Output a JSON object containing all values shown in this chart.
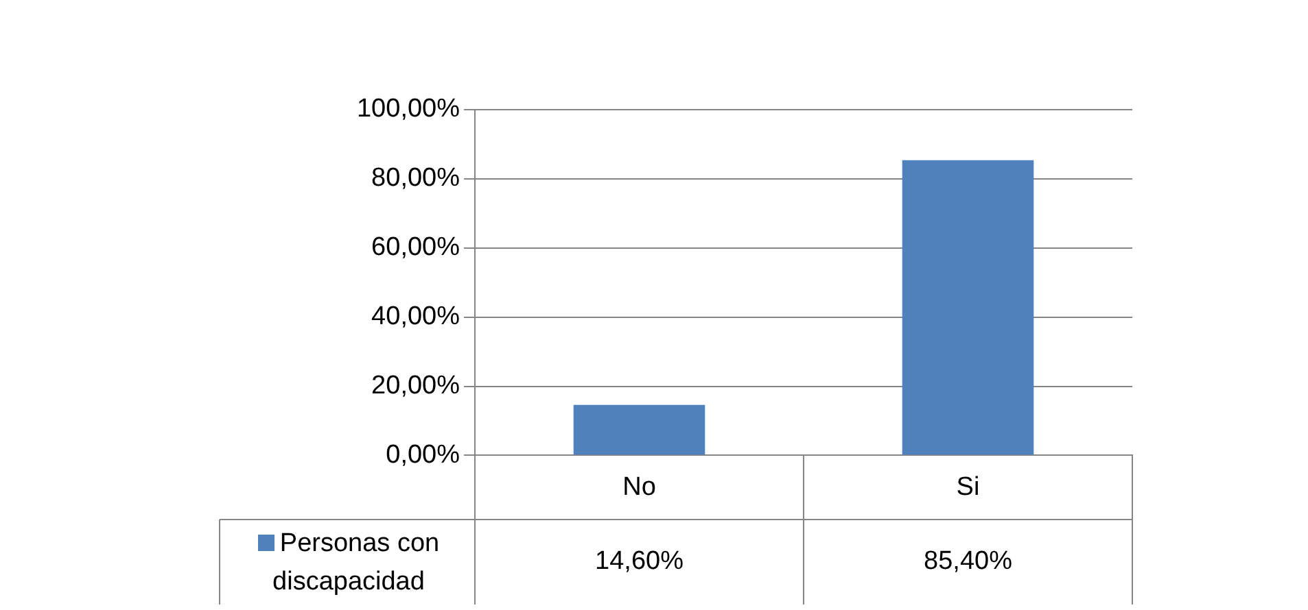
{
  "chart_data": {
    "type": "bar",
    "categories": [
      "No",
      "Si"
    ],
    "series": [
      {
        "name": "Personas con discapacidad",
        "color": "#4f81bd",
        "values": [
          14.6,
          85.4
        ],
        "value_labels": [
          "14,60%",
          "85,40%"
        ]
      }
    ],
    "ylim": [
      0,
      100
    ],
    "yticks": [
      {
        "value": 0,
        "label": "0,00%"
      },
      {
        "value": 20,
        "label": "20,00%"
      },
      {
        "value": 40,
        "label": "40,00%"
      },
      {
        "value": 60,
        "label": "60,00%"
      },
      {
        "value": 80,
        "label": "80,00%"
      },
      {
        "value": 100,
        "label": "100,00%"
      }
    ],
    "grid": "y",
    "legend": "bottom"
  }
}
